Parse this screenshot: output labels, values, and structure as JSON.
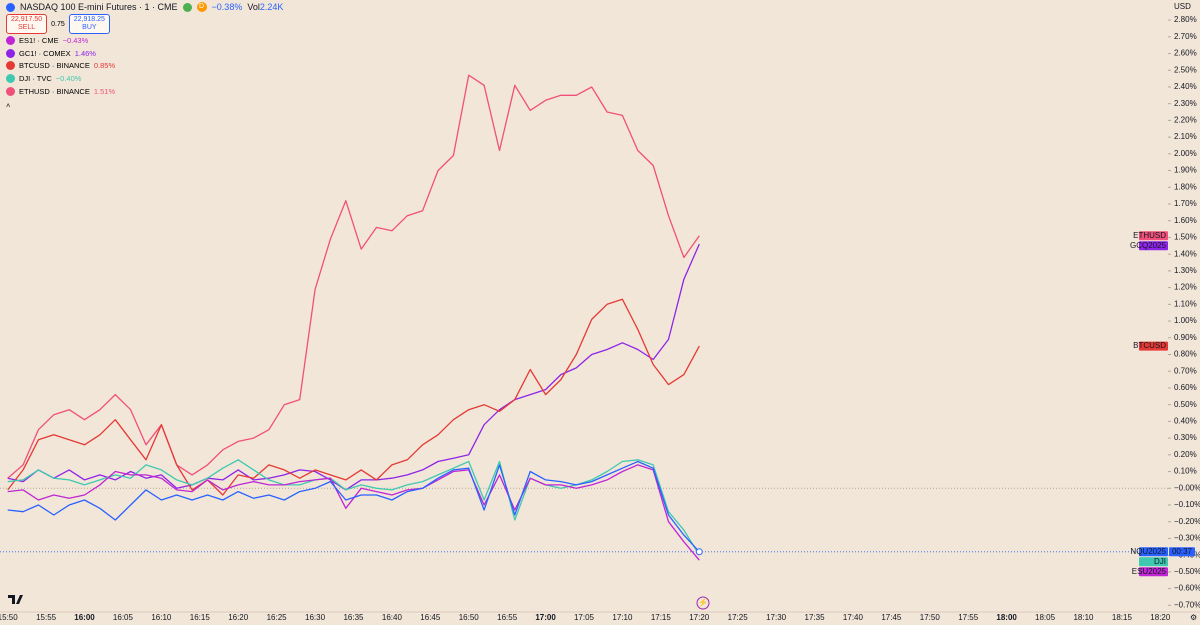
{
  "header": {
    "badge": "D",
    "volume_label": "Vol",
    "volume": "2.24K"
  },
  "trade": {
    "sell_price": "22,917.50",
    "sell": "SELL",
    "spread": "0.75",
    "buy_price": "22,918.25",
    "buy": "BUY"
  },
  "chart_data": {
    "type": "line",
    "currency": "USD",
    "countdown": "00:37",
    "x": [
      "15:50",
      "15:52",
      "15:54",
      "15:56",
      "15:58",
      "16:00",
      "16:02",
      "16:04",
      "16:06",
      "16:08",
      "16:10",
      "16:12",
      "16:14",
      "16:16",
      "16:18",
      "16:20",
      "16:22",
      "16:24",
      "16:26",
      "16:28",
      "16:30",
      "16:32",
      "16:34",
      "16:36",
      "16:38",
      "16:40",
      "16:42",
      "16:44",
      "16:46",
      "16:48",
      "16:50",
      "16:52",
      "16:54",
      "16:56",
      "16:58",
      "17:00",
      "17:02",
      "17:04",
      "17:06",
      "17:08",
      "17:10",
      "17:12",
      "17:14",
      "17:16",
      "17:18",
      "17:20"
    ],
    "series": [
      {
        "name": "NASDAQ 100 E-mini Futures · 1 · CME",
        "change": "−0.38%",
        "tag": "NQU2025",
        "color": "#2962ff",
        "values": [
          -0.13,
          -0.14,
          -0.1,
          -0.16,
          -0.1,
          -0.07,
          -0.12,
          -0.19,
          -0.1,
          -0.01,
          -0.07,
          -0.04,
          -0.07,
          -0.04,
          -0.07,
          -0.02,
          -0.06,
          -0.04,
          -0.07,
          -0.02,
          0.0,
          0.04,
          -0.07,
          -0.04,
          -0.04,
          -0.07,
          -0.02,
          0.0,
          0.06,
          0.11,
          0.12,
          -0.13,
          0.14,
          -0.16,
          0.1,
          0.05,
          0.04,
          0.02,
          0.04,
          0.08,
          0.12,
          0.16,
          0.12,
          -0.16,
          -0.28,
          -0.38
        ]
      },
      {
        "name": "ES1! · CME",
        "change": "−0.43%",
        "tag": "ESU2025",
        "color": "#c026d3",
        "values": [
          -0.02,
          -0.01,
          -0.07,
          -0.04,
          -0.06,
          -0.04,
          0.02,
          0.1,
          0.08,
          0.08,
          0.06,
          -0.01,
          -0.02,
          0.05,
          -0.01,
          0.02,
          0.04,
          0.02,
          0.02,
          0.04,
          0.05,
          0.06,
          -0.12,
          0.0,
          -0.02,
          -0.04,
          -0.01,
          0.0,
          0.05,
          0.1,
          0.11,
          -0.1,
          0.08,
          -0.13,
          0.06,
          0.02,
          0.02,
          0.0,
          0.02,
          0.05,
          0.1,
          0.14,
          0.11,
          -0.2,
          -0.32,
          -0.43
        ]
      },
      {
        "name": "GC1! · COMEX",
        "change": "1.46%",
        "tag": "GCQ2025",
        "color": "#8e24e8",
        "values": [
          0.06,
          0.04,
          0.11,
          0.06,
          0.11,
          0.05,
          0.08,
          0.05,
          0.1,
          0.06,
          0.08,
          0.0,
          0.02,
          0.06,
          0.05,
          0.11,
          0.05,
          0.06,
          0.08,
          0.11,
          0.1,
          0.05,
          -0.01,
          0.05,
          0.05,
          0.06,
          0.08,
          0.11,
          0.16,
          0.18,
          0.2,
          0.38,
          0.47,
          0.53,
          0.56,
          0.59,
          0.68,
          0.72,
          0.8,
          0.83,
          0.87,
          0.83,
          0.77,
          0.89,
          1.25,
          1.46
        ]
      },
      {
        "name": "BTCUSD · BINANCE",
        "change": "0.85%",
        "tag": "BTCUSD",
        "color": "#e53935",
        "values": [
          -0.01,
          0.11,
          0.29,
          0.32,
          0.29,
          0.26,
          0.32,
          0.41,
          0.29,
          0.17,
          0.38,
          0.14,
          -0.01,
          0.05,
          -0.04,
          0.08,
          0.06,
          0.14,
          0.11,
          0.06,
          0.11,
          0.08,
          0.05,
          0.11,
          0.05,
          0.14,
          0.17,
          0.26,
          0.32,
          0.41,
          0.47,
          0.5,
          0.46,
          0.53,
          0.71,
          0.56,
          0.65,
          0.8,
          1.01,
          1.1,
          1.13,
          0.95,
          0.74,
          0.62,
          0.68,
          0.85
        ]
      },
      {
        "name": "DJI · TVC",
        "change": "−0.40%",
        "tag": "DJI",
        "color": "#3ec9b0",
        "values": [
          0.04,
          0.05,
          0.11,
          0.06,
          0.05,
          0.02,
          0.05,
          0.08,
          0.06,
          0.14,
          0.11,
          0.05,
          0.02,
          0.06,
          0.12,
          0.17,
          0.11,
          0.05,
          0.02,
          0.02,
          0.05,
          0.06,
          -0.01,
          0.02,
          0.0,
          -0.01,
          0.02,
          0.04,
          0.08,
          0.12,
          0.16,
          -0.07,
          0.16,
          -0.19,
          0.06,
          0.02,
          0.0,
          0.02,
          0.05,
          0.1,
          0.16,
          0.17,
          0.14,
          -0.14,
          -0.25,
          -0.4
        ]
      },
      {
        "name": "ETHUSD · BINANCE",
        "change": "1.51%",
        "tag": "ETHUSD",
        "color": "#f0507a",
        "values": [
          0.06,
          0.14,
          0.35,
          0.44,
          0.47,
          0.41,
          0.47,
          0.56,
          0.47,
          0.26,
          0.38,
          0.14,
          0.08,
          0.14,
          0.23,
          0.28,
          0.3,
          0.35,
          0.5,
          0.53,
          1.19,
          1.49,
          1.72,
          1.43,
          1.56,
          1.54,
          1.63,
          1.66,
          1.9,
          1.99,
          2.47,
          2.41,
          2.02,
          2.41,
          2.26,
          2.32,
          2.35,
          2.35,
          2.4,
          2.25,
          2.23,
          2.02,
          1.93,
          1.63,
          1.38,
          1.51
        ]
      }
    ],
    "ylim": [
      -0.74,
      2.92
    ],
    "yticks": [
      {
        "value": 2.8,
        "label": "2.80%"
      },
      {
        "value": 2.7,
        "label": "2.70%"
      },
      {
        "value": 2.6,
        "label": "2.60%"
      },
      {
        "value": 2.5,
        "label": "2.50%"
      },
      {
        "value": 2.4,
        "label": "2.40%"
      },
      {
        "value": 2.3,
        "label": "2.30%"
      },
      {
        "value": 2.2,
        "label": "2.20%"
      },
      {
        "value": 2.1,
        "label": "2.10%"
      },
      {
        "value": 2.0,
        "label": "2.00%"
      },
      {
        "value": 1.9,
        "label": "1.90%"
      },
      {
        "value": 1.8,
        "label": "1.80%"
      },
      {
        "value": 1.7,
        "label": "1.70%"
      },
      {
        "value": 1.6,
        "label": "1.60%"
      },
      {
        "value": 1.5,
        "label": "1.50%"
      },
      {
        "value": 1.4,
        "label": "1.40%"
      },
      {
        "value": 1.3,
        "label": "1.30%"
      },
      {
        "value": 1.2,
        "label": "1.20%"
      },
      {
        "value": 1.1,
        "label": "1.10%"
      },
      {
        "value": 1.0,
        "label": "1.00%"
      },
      {
        "value": 0.9,
        "label": "0.90%"
      },
      {
        "value": 0.8,
        "label": "0.80%"
      },
      {
        "value": 0.7,
        "label": "0.70%"
      },
      {
        "value": 0.6,
        "label": "0.60%"
      },
      {
        "value": 0.5,
        "label": "0.50%"
      },
      {
        "value": 0.4,
        "label": "0.40%"
      },
      {
        "value": 0.3,
        "label": "0.30%"
      },
      {
        "value": 0.2,
        "label": "0.20%"
      },
      {
        "value": 0.1,
        "label": "0.10%"
      },
      {
        "value": 0,
        "label": "−0.00%"
      },
      {
        "value": -0.1,
        "label": "−0.10%"
      },
      {
        "value": -0.2,
        "label": "−0.20%"
      },
      {
        "value": -0.3,
        "label": "−0.30%"
      },
      {
        "value": -0.4,
        "label": "−0.40%"
      },
      {
        "value": -0.5,
        "label": "−0.50%"
      },
      {
        "value": -0.6,
        "label": "−0.60%"
      },
      {
        "value": -0.7,
        "label": "−0.70%"
      }
    ],
    "xlim": [
      "15:49",
      "18:21"
    ],
    "xticks": [
      "15:50",
      "15:55",
      "16:00",
      "16:05",
      "16:10",
      "16:15",
      "16:20",
      "16:25",
      "16:30",
      "16:35",
      "16:40",
      "16:45",
      "16:50",
      "16:55",
      "17:00",
      "17:05",
      "17:10",
      "17:15",
      "17:20",
      "17:25",
      "17:30",
      "17:35",
      "17:40",
      "17:45",
      "17:50",
      "17:55",
      "18:00",
      "18:05",
      "18:10",
      "18:15",
      "18:20"
    ]
  }
}
